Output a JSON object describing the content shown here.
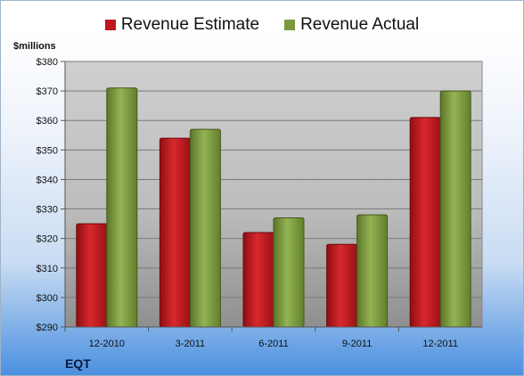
{
  "legend": {
    "estimate_label": "Revenue Estimate",
    "actual_label": "Revenue Actual"
  },
  "unit_label": "$millions",
  "ticker": "EQT",
  "colors": {
    "estimate": "#c0181e",
    "actual": "#7a9a3c",
    "plot_bg": "#c8c8c8"
  },
  "chart_data": {
    "type": "bar",
    "categories": [
      "12-2010",
      "3-2011",
      "6-2011",
      "9-2011",
      "12-2011"
    ],
    "series": [
      {
        "name": "Revenue Estimate",
        "values": [
          325,
          354,
          322,
          318,
          361
        ]
      },
      {
        "name": "Revenue Actual",
        "values": [
          371,
          357,
          327,
          328,
          370
        ]
      }
    ],
    "ylim": [
      290,
      380
    ],
    "yticks": [
      "$290",
      "$300",
      "$310",
      "$320",
      "$330",
      "$340",
      "$350",
      "$360",
      "$370",
      "$380"
    ],
    "ylabel": "$millions",
    "xlabel": "",
    "title": "",
    "grid": true,
    "legend_position": "top"
  }
}
